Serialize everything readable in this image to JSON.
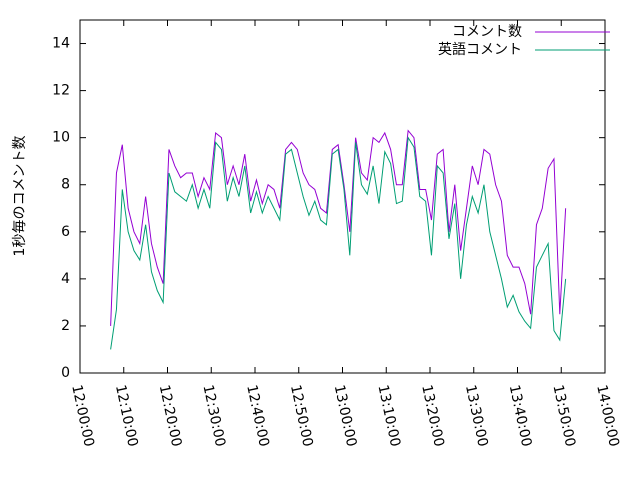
{
  "chart_data": {
    "type": "line",
    "y_label": "1秒毎のコメント数",
    "x": [
      "12:07:00",
      "12:08:20",
      "12:09:40",
      "12:11:00",
      "12:12:20",
      "12:13:40",
      "12:15:00",
      "12:16:20",
      "12:17:40",
      "12:19:00",
      "12:20:20",
      "12:21:40",
      "12:23:00",
      "12:24:20",
      "12:25:40",
      "12:27:00",
      "12:28:20",
      "12:29:40",
      "12:31:00",
      "12:32:20",
      "12:33:40",
      "12:35:00",
      "12:36:20",
      "12:37:40",
      "12:39:00",
      "12:40:20",
      "12:41:40",
      "12:43:00",
      "12:44:20",
      "12:45:40",
      "12:47:00",
      "12:48:20",
      "12:49:40",
      "12:51:00",
      "12:52:20",
      "12:53:40",
      "12:55:00",
      "12:56:20",
      "12:57:40",
      "12:59:00",
      "13:00:20",
      "13:01:40",
      "13:03:00",
      "13:04:20",
      "13:05:40",
      "13:07:00",
      "13:08:20",
      "13:09:40",
      "13:11:00",
      "13:12:20",
      "13:13:40",
      "13:15:00",
      "13:16:20",
      "13:17:40",
      "13:19:00",
      "13:20:20",
      "13:21:40",
      "13:23:00",
      "13:24:20",
      "13:25:40",
      "13:27:00",
      "13:28:20",
      "13:29:40",
      "13:31:00",
      "13:32:20",
      "13:33:40",
      "13:35:00",
      "13:36:20",
      "13:37:40",
      "13:39:00",
      "13:40:20",
      "13:41:40",
      "13:43:00",
      "13:44:20",
      "13:45:40",
      "13:47:00",
      "13:48:20",
      "13:49:40",
      "13:51:00"
    ],
    "series": [
      {
        "name": "コメント数",
        "color": "#9400d3",
        "values": [
          2.0,
          8.5,
          9.7,
          7.0,
          6.0,
          5.5,
          7.5,
          5.5,
          4.5,
          3.8,
          9.5,
          8.8,
          8.3,
          8.5,
          8.5,
          7.5,
          8.3,
          7.8,
          10.2,
          10.0,
          8.0,
          8.8,
          8.0,
          9.3,
          7.3,
          8.2,
          7.2,
          8.0,
          7.8,
          7.0,
          9.5,
          9.8,
          9.5,
          8.5,
          8.0,
          7.8,
          7.0,
          6.8,
          9.5,
          9.7,
          8.0,
          6.0,
          10.0,
          8.5,
          8.2,
          10.0,
          9.8,
          10.2,
          9.5,
          8.0,
          8.0,
          10.3,
          10.0,
          7.8,
          7.8,
          6.5,
          9.3,
          9.5,
          6.0,
          8.0,
          5.2,
          7.0,
          8.8,
          8.0,
          9.5,
          9.3,
          8.0,
          7.3,
          5.0,
          4.5,
          4.5,
          3.8,
          2.5,
          6.3,
          7.0,
          8.7,
          9.1,
          2.5,
          7.0
        ]
      },
      {
        "name": "英語コメント",
        "color": "#009e73",
        "values": [
          1.0,
          2.7,
          7.8,
          6.0,
          5.2,
          4.8,
          6.3,
          4.3,
          3.5,
          3.0,
          8.5,
          7.7,
          7.5,
          7.3,
          8.0,
          7.0,
          7.8,
          7.0,
          9.8,
          9.5,
          7.3,
          8.3,
          7.5,
          8.8,
          6.8,
          7.7,
          6.8,
          7.5,
          7.0,
          6.5,
          9.3,
          9.5,
          8.5,
          7.5,
          6.7,
          7.3,
          6.5,
          6.3,
          9.3,
          9.5,
          7.8,
          5.0,
          9.8,
          8.0,
          7.6,
          8.8,
          7.2,
          9.4,
          8.9,
          7.2,
          7.3,
          10.0,
          9.6,
          7.5,
          7.3,
          5.0,
          8.8,
          8.5,
          5.7,
          7.2,
          4.0,
          6.3,
          7.5,
          6.8,
          8.0,
          6.0,
          5.0,
          4.0,
          2.8,
          3.3,
          2.6,
          2.2,
          1.9,
          4.5,
          5.0,
          5.5,
          1.8,
          1.4,
          4.0
        ]
      }
    ],
    "xlim": [
      "12:00:00",
      "14:00:00"
    ],
    "xticks": [
      "12:00:00",
      "12:10:00",
      "12:20:00",
      "12:30:00",
      "12:40:00",
      "12:50:00",
      "13:00:00",
      "13:10:00",
      "13:20:00",
      "13:30:00",
      "13:40:00",
      "13:50:00",
      "14:00:00"
    ],
    "ylim": [
      0,
      15
    ],
    "yticks": [
      0,
      2,
      4,
      6,
      8,
      10,
      12,
      14
    ],
    "grid": false,
    "legend": "top-right"
  }
}
